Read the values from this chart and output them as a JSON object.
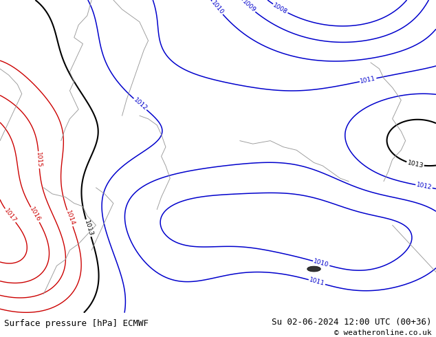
{
  "title_left": "Surface pressure [hPa] ECMWF",
  "title_right": "Su 02-06-2024 12:00 UTC (00+36)",
  "copyright": "© weatheronline.co.uk",
  "bg_color": "#b5e57a",
  "contour_color_red": "#cc0000",
  "contour_color_blue": "#0000cc",
  "contour_color_black": "#000000",
  "coast_color": "#999999",
  "text_color": "#000000",
  "font_size_bottom": 9,
  "figwidth": 6.34,
  "figheight": 4.9,
  "dpi": 100
}
